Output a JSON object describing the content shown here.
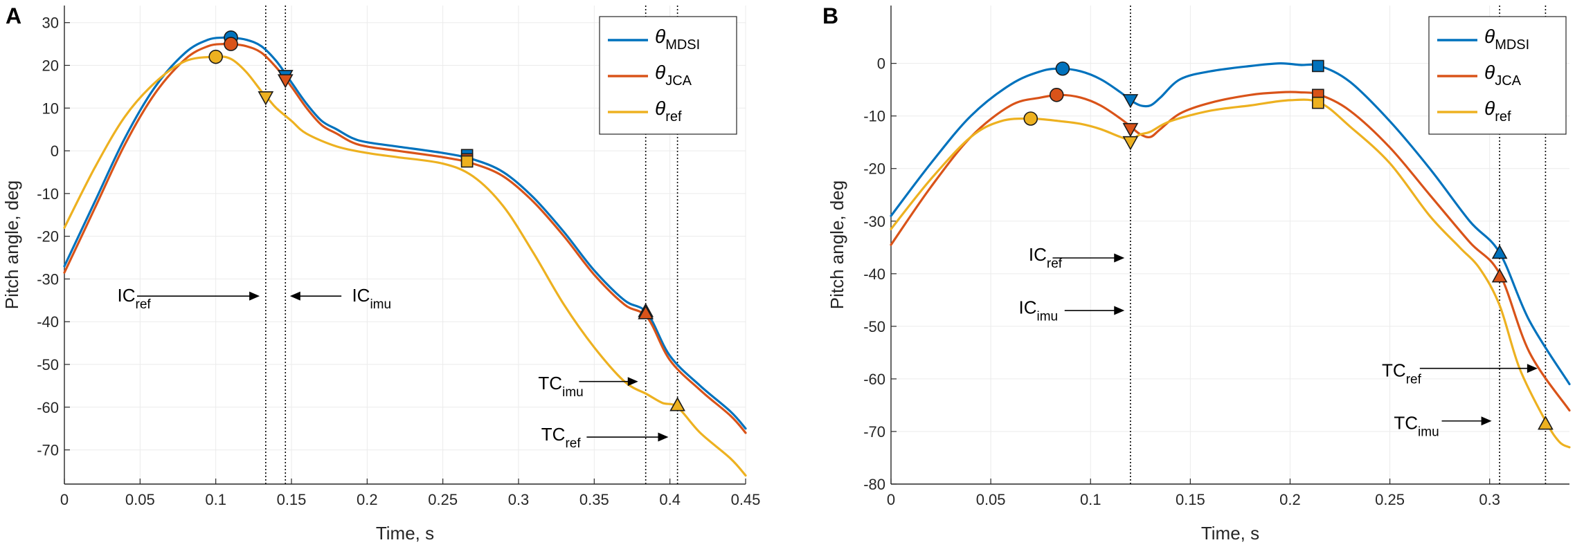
{
  "chart_data": [
    {
      "type": "line",
      "panel_label": "A",
      "xlabel": "Time, s",
      "ylabel": "Pitch angle, deg",
      "xlim": [
        0,
        0.45
      ],
      "ylim": [
        -78,
        34
      ],
      "xticks": [
        0,
        0.05,
        0.1,
        0.15,
        0.2,
        0.25,
        0.3,
        0.35,
        0.4,
        0.45
      ],
      "xtick_labels": [
        "0",
        "0.05",
        "0.1",
        "0.15",
        "0.2",
        "0.25",
        "0.3",
        "0.35",
        "0.4",
        "0.45"
      ],
      "yticks": [
        30,
        20,
        10,
        0,
        -10,
        -20,
        -30,
        -40,
        -50,
        -60,
        -70
      ],
      "ytick_labels": [
        "30",
        "20",
        "10",
        "0",
        "-10",
        "-20",
        "-30",
        "-40",
        "-50",
        "-60",
        "-70"
      ],
      "grid": true,
      "legend_position": "top-right",
      "series": [
        {
          "name": "θ_MDSI",
          "name_main": "θ",
          "name_sub": "MDSI",
          "color": "#0072BD",
          "x": [
            0,
            0.02,
            0.04,
            0.06,
            0.08,
            0.095,
            0.105,
            0.11,
            0.12,
            0.13,
            0.14,
            0.15,
            0.16,
            0.17,
            0.18,
            0.19,
            0.2,
            0.22,
            0.25,
            0.27,
            0.29,
            0.31,
            0.33,
            0.35,
            0.37,
            0.385,
            0.4,
            0.42,
            0.44,
            0.45
          ],
          "y": [
            -27,
            -12,
            3,
            15,
            23,
            26,
            26.5,
            26.5,
            26,
            24.5,
            21,
            16,
            11,
            7,
            5,
            3,
            2,
            1,
            -0.5,
            -2,
            -5,
            -11,
            -19,
            -28,
            -35,
            -38,
            -48,
            -55,
            -61,
            -65
          ]
        },
        {
          "name": "θ_JCA",
          "name_main": "θ",
          "name_sub": "JCA",
          "color": "#D95319",
          "x": [
            0,
            0.02,
            0.04,
            0.06,
            0.08,
            0.095,
            0.105,
            0.11,
            0.12,
            0.13,
            0.14,
            0.15,
            0.16,
            0.17,
            0.18,
            0.19,
            0.2,
            0.22,
            0.25,
            0.27,
            0.29,
            0.31,
            0.33,
            0.35,
            0.37,
            0.385,
            0.4,
            0.42,
            0.44,
            0.45
          ],
          "y": [
            -28.5,
            -13.5,
            1.5,
            13.5,
            21.5,
            24.5,
            25,
            25,
            24.5,
            23,
            19.5,
            15,
            10,
            6,
            4,
            2,
            1,
            0,
            -1.5,
            -3,
            -6,
            -12,
            -20,
            -29,
            -36,
            -39,
            -49,
            -56,
            -62,
            -66
          ]
        },
        {
          "name": "θ_ref",
          "name_main": "θ",
          "name_sub": "ref",
          "color": "#EDB120",
          "x": [
            0,
            0.02,
            0.04,
            0.06,
            0.08,
            0.1,
            0.11,
            0.12,
            0.13,
            0.135,
            0.14,
            0.15,
            0.16,
            0.18,
            0.2,
            0.22,
            0.25,
            0.27,
            0.29,
            0.31,
            0.33,
            0.35,
            0.37,
            0.385,
            0.395,
            0.405,
            0.42,
            0.44,
            0.45
          ],
          "y": [
            -18,
            -4,
            8,
            16,
            21,
            22,
            21.5,
            18.5,
            14,
            12,
            10,
            7,
            4,
            1,
            -0.5,
            -1.5,
            -3,
            -6,
            -13,
            -24,
            -36,
            -46,
            -54,
            -57,
            -59,
            -60,
            -66,
            -72,
            -76
          ]
        }
      ],
      "markers": [
        {
          "series": 0,
          "shape": "circle",
          "x": 0.11,
          "y": 26.5
        },
        {
          "series": 1,
          "shape": "circle",
          "x": 0.11,
          "y": 25
        },
        {
          "series": 2,
          "shape": "circle",
          "x": 0.1,
          "y": 22
        },
        {
          "series": 0,
          "shape": "triangle-down",
          "x": 0.146,
          "y": 17.5
        },
        {
          "series": 1,
          "shape": "triangle-down",
          "x": 0.146,
          "y": 16.5
        },
        {
          "series": 2,
          "shape": "triangle-down",
          "x": 0.133,
          "y": 12.5
        },
        {
          "series": 0,
          "shape": "square",
          "x": 0.266,
          "y": -1
        },
        {
          "series": 1,
          "shape": "square",
          "x": 0.266,
          "y": -2
        },
        {
          "series": 2,
          "shape": "square",
          "x": 0.266,
          "y": -2.5
        },
        {
          "series": 0,
          "shape": "triangle-up",
          "x": 0.384,
          "y": -37.5
        },
        {
          "series": 1,
          "shape": "triangle-up",
          "x": 0.384,
          "y": -38
        },
        {
          "series": 2,
          "shape": "triangle-up",
          "x": 0.405,
          "y": -59.5
        }
      ],
      "vlines": [
        0.133,
        0.146,
        0.384,
        0.405
      ],
      "annotations": [
        {
          "main": "IC",
          "sub": "ref",
          "label_x": 0.035,
          "label_y": -34,
          "arrow_from": [
            0.048,
            -34
          ],
          "arrow_to": [
            0.129,
            -34
          ]
        },
        {
          "main": "IC",
          "sub": "imu",
          "label_x": 0.19,
          "label_y": -34,
          "arrow_from": [
            0.183,
            -34
          ],
          "arrow_to": [
            0.149,
            -34
          ]
        },
        {
          "main": "TC",
          "sub": "imu",
          "label_x": 0.313,
          "label_y": -54.5,
          "arrow_from": [
            0.34,
            -54
          ],
          "arrow_to": [
            0.379,
            -54
          ]
        },
        {
          "main": "TC",
          "sub": "ref",
          "label_x": 0.315,
          "label_y": -66.5,
          "arrow_from": [
            0.345,
            -67
          ],
          "arrow_to": [
            0.399,
            -67
          ]
        }
      ]
    },
    {
      "type": "line",
      "panel_label": "B",
      "xlabel": "Time, s",
      "ylabel": "Pitch angle, deg",
      "xlim": [
        0,
        0.34
      ],
      "ylim": [
        -80,
        11
      ],
      "xticks": [
        0,
        0.05,
        0.1,
        0.15,
        0.2,
        0.25,
        0.3
      ],
      "xtick_labels": [
        "0",
        "0.05",
        "0.1",
        "0.15",
        "0.2",
        "0.25",
        "0.3"
      ],
      "yticks": [
        0,
        -10,
        -20,
        -30,
        -40,
        -50,
        -60,
        -70,
        -80
      ],
      "ytick_labels": [
        "0",
        "-10",
        "-20",
        "-30",
        "-40",
        "-50",
        "-60",
        "-70",
        "-80"
      ],
      "grid": true,
      "legend_position": "top-right",
      "series": [
        {
          "name": "θ_MDSI",
          "name_main": "θ",
          "name_sub": "MDSI",
          "color": "#0072BD",
          "x": [
            0,
            0.02,
            0.04,
            0.06,
            0.075,
            0.085,
            0.095,
            0.105,
            0.115,
            0.12,
            0.125,
            0.13,
            0.135,
            0.145,
            0.16,
            0.18,
            0.195,
            0.205,
            0.215,
            0.23,
            0.25,
            0.27,
            0.29,
            0.305,
            0.32,
            0.34
          ],
          "y": [
            -29,
            -19,
            -10,
            -4,
            -1.5,
            -1,
            -1.5,
            -3,
            -5.5,
            -7,
            -8,
            -8,
            -6.5,
            -3,
            -1.5,
            -0.5,
            0,
            -0.3,
            -0.5,
            -3.5,
            -11,
            -20,
            -30,
            -36,
            -49,
            -61
          ]
        },
        {
          "name": "θ_JCA",
          "name_main": "θ",
          "name_sub": "JCA",
          "color": "#D95319",
          "x": [
            0,
            0.02,
            0.04,
            0.06,
            0.075,
            0.085,
            0.095,
            0.105,
            0.115,
            0.12,
            0.125,
            0.13,
            0.135,
            0.145,
            0.16,
            0.18,
            0.195,
            0.205,
            0.215,
            0.23,
            0.25,
            0.27,
            0.29,
            0.305,
            0.32,
            0.34
          ],
          "y": [
            -34.5,
            -23.5,
            -14,
            -8,
            -6.5,
            -6,
            -6.5,
            -8,
            -10.5,
            -12,
            -13.5,
            -14,
            -12.5,
            -9.5,
            -7.5,
            -6,
            -5.5,
            -5.5,
            -6,
            -9,
            -16,
            -25,
            -34,
            -40,
            -55,
            -66
          ]
        },
        {
          "name": "θ_ref",
          "name_main": "θ",
          "name_sub": "ref",
          "color": "#EDB120",
          "x": [
            0,
            0.02,
            0.04,
            0.055,
            0.07,
            0.085,
            0.095,
            0.105,
            0.115,
            0.12,
            0.125,
            0.13,
            0.14,
            0.16,
            0.18,
            0.2,
            0.215,
            0.23,
            0.25,
            0.27,
            0.285,
            0.295,
            0.305,
            0.315,
            0.328,
            0.335,
            0.34
          ],
          "y": [
            -31.5,
            -22,
            -14,
            -11,
            -10.5,
            -11,
            -11.5,
            -12.5,
            -14,
            -14.5,
            -13.5,
            -13,
            -11,
            -9,
            -8,
            -7,
            -7.5,
            -12,
            -19,
            -29,
            -35,
            -39,
            -46,
            -58,
            -68,
            -72,
            -73
          ]
        }
      ],
      "markers": [
        {
          "series": 0,
          "shape": "circle",
          "x": 0.086,
          "y": -1
        },
        {
          "series": 1,
          "shape": "circle",
          "x": 0.083,
          "y": -6
        },
        {
          "series": 2,
          "shape": "circle",
          "x": 0.07,
          "y": -10.5
        },
        {
          "series": 0,
          "shape": "triangle-down",
          "x": 0.12,
          "y": -7
        },
        {
          "series": 1,
          "shape": "triangle-down",
          "x": 0.12,
          "y": -12.5
        },
        {
          "series": 2,
          "shape": "triangle-down",
          "x": 0.12,
          "y": -15
        },
        {
          "series": 0,
          "shape": "square",
          "x": 0.214,
          "y": -0.5
        },
        {
          "series": 1,
          "shape": "square",
          "x": 0.214,
          "y": -6
        },
        {
          "series": 2,
          "shape": "square",
          "x": 0.214,
          "y": -7.5
        },
        {
          "series": 0,
          "shape": "triangle-up",
          "x": 0.305,
          "y": -36
        },
        {
          "series": 1,
          "shape": "triangle-up",
          "x": 0.305,
          "y": -40.5
        },
        {
          "series": 2,
          "shape": "triangle-up",
          "x": 0.328,
          "y": -68.5
        }
      ],
      "vlines": [
        0.12,
        0.305,
        0.328
      ],
      "annotations": [
        {
          "main": "IC",
          "sub": "ref",
          "label_x": 0.069,
          "label_y": -36.5,
          "arrow_from": [
            0.081,
            -37
          ],
          "arrow_to": [
            0.117,
            -37
          ]
        },
        {
          "main": "IC",
          "sub": "imu",
          "label_x": 0.064,
          "label_y": -46.5,
          "arrow_from": [
            0.087,
            -47
          ],
          "arrow_to": [
            0.117,
            -47
          ]
        },
        {
          "main": "TC",
          "sub": "ref",
          "label_x": 0.246,
          "label_y": -58.5,
          "arrow_from": [
            0.265,
            -58
          ],
          "arrow_to": [
            0.324,
            -58
          ]
        },
        {
          "main": "TC",
          "sub": "imu",
          "label_x": 0.252,
          "label_y": -68.5,
          "arrow_from": [
            0.276,
            -68
          ],
          "arrow_to": [
            0.301,
            -68
          ]
        }
      ]
    }
  ]
}
